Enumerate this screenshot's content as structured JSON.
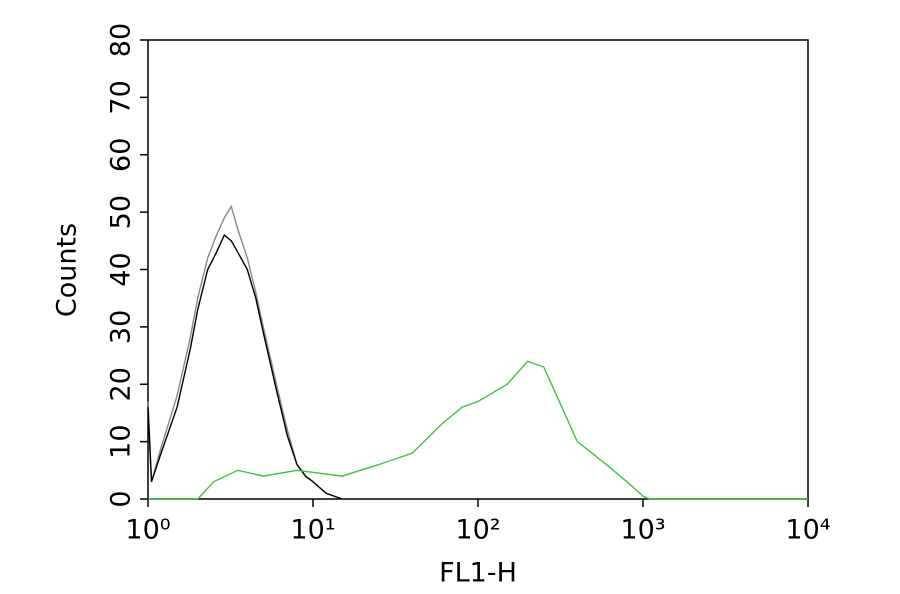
{
  "chart_data": {
    "type": "line",
    "xlabel": "FL1-H",
    "ylabel": "Counts",
    "xscale": "log",
    "grid": false,
    "xlim": [
      1,
      10000
    ],
    "ylim": [
      0,
      80
    ],
    "xticks": [
      {
        "value": 1,
        "label": "10⁰"
      },
      {
        "value": 10,
        "label": "10¹"
      },
      {
        "value": 100,
        "label": "10²"
      },
      {
        "value": 1000,
        "label": "10³"
      },
      {
        "value": 10000,
        "label": "10⁴"
      }
    ],
    "yticks": [
      0,
      10,
      20,
      30,
      40,
      50,
      60,
      70,
      80
    ],
    "series": [
      {
        "color": "#888888",
        "x": [
          1,
          1.05,
          1.2,
          1.5,
          1.8,
          2,
          2.3,
          2.6,
          2.9,
          3.2,
          3.5,
          4,
          4.5,
          5,
          6,
          7,
          8,
          9,
          10,
          12,
          15
        ],
        "values": [
          17,
          3,
          9,
          18,
          28,
          35,
          42,
          46,
          49,
          51,
          47,
          42,
          36,
          30,
          20,
          12,
          6,
          4,
          3,
          1,
          0
        ]
      },
      {
        "color": "#000000",
        "x": [
          1,
          1.05,
          1.2,
          1.5,
          1.8,
          2,
          2.3,
          2.6,
          2.9,
          3.2,
          3.5,
          4,
          4.5,
          5,
          6,
          7,
          8,
          9,
          10,
          12,
          15
        ],
        "values": [
          16,
          3,
          8,
          16,
          26,
          33,
          40,
          43,
          46,
          45,
          43,
          40,
          35,
          29,
          19,
          11,
          6,
          4,
          3,
          1,
          0
        ]
      },
      {
        "color": "#3ec43e",
        "x": [
          1,
          2,
          2.5,
          3.5,
          5,
          8,
          15,
          25,
          40,
          60,
          80,
          100,
          150,
          200,
          250,
          300,
          400,
          600,
          800,
          1000,
          1100,
          10000
        ],
        "values": [
          0,
          0,
          3,
          5,
          4,
          5,
          4,
          6,
          8,
          13,
          16,
          17,
          20,
          24,
          23,
          18,
          10,
          6,
          3,
          0.5,
          0,
          0
        ]
      }
    ]
  }
}
